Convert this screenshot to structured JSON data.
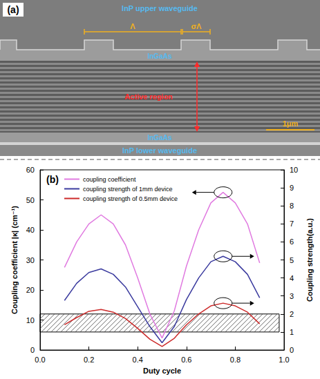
{
  "micrograph": {
    "panel_label": "(a)",
    "texts": {
      "upper": "InP upper waveguide",
      "period": "Λ",
      "duty": "σΛ",
      "ingaas_top": "InGaAs",
      "active": "Active region",
      "ingaas_bottom": "InGaAs",
      "lower": "InP lower waveguide",
      "scale_bar": "1μm"
    }
  },
  "chart_data": {
    "type": "line",
    "panel_label": "(b)",
    "x_label": "Duty cycle",
    "y_label": "Coupling coefficient |κ| (cm⁻¹)",
    "y2_label": "Coupling strength(a.u.)",
    "x": [
      0.1,
      0.15,
      0.2,
      0.25,
      0.3,
      0.35,
      0.4,
      0.45,
      0.5,
      0.55,
      0.6,
      0.65,
      0.7,
      0.75,
      0.8,
      0.85,
      0.9
    ],
    "xlim": [
      0,
      1
    ],
    "xticks": [
      {
        "value": 0,
        "label": "0.0"
      },
      {
        "value": 0.2,
        "label": "0.2"
      },
      {
        "value": 0.4,
        "label": "0.4"
      },
      {
        "value": 0.6,
        "label": "0.6"
      },
      {
        "value": 0.8,
        "label": "0.8"
      },
      {
        "value": 1,
        "label": "1.0"
      }
    ],
    "ylim": [
      0,
      60
    ],
    "yticks": [
      0,
      10,
      20,
      30,
      40,
      50,
      60
    ],
    "y2lim": [
      0,
      10
    ],
    "y2ticks": [
      0,
      1,
      2,
      3,
      4,
      5,
      6,
      7,
      8,
      9,
      10
    ],
    "grid": false,
    "legend": "upper left",
    "series": [
      {
        "name": "coupling coefficient",
        "color": "#e07ae0",
        "line_style": "solid",
        "values": [
          27.5,
          36,
          42,
          45,
          42,
          35,
          24,
          12,
          4,
          13,
          28,
          40,
          49,
          52.5,
          49,
          42,
          29
        ]
      },
      {
        "name": "coupling strength of 1mm device",
        "color": "#3a3a9e",
        "line_style": "solid",
        "axis": "y2",
        "values": [
          2.75,
          3.7,
          4.3,
          4.5,
          4.2,
          3.5,
          2.4,
          1.3,
          0.4,
          1.3,
          2.8,
          4.0,
          4.9,
          5.2,
          4.9,
          4.2,
          2.9
        ]
      },
      {
        "name": "coupling strength of 0.5mm device",
        "color": "#cc2a2a",
        "line_style": "solid",
        "axis": "y2",
        "values": [
          1.4,
          1.8,
          2.15,
          2.25,
          2.1,
          1.75,
          1.2,
          0.6,
          0.2,
          0.65,
          1.4,
          2.0,
          2.45,
          2.6,
          2.45,
          2.1,
          1.45
        ]
      }
    ],
    "shaded_region": {
      "x": [
        0,
        0.98
      ],
      "y2": [
        1,
        2
      ]
    }
  }
}
